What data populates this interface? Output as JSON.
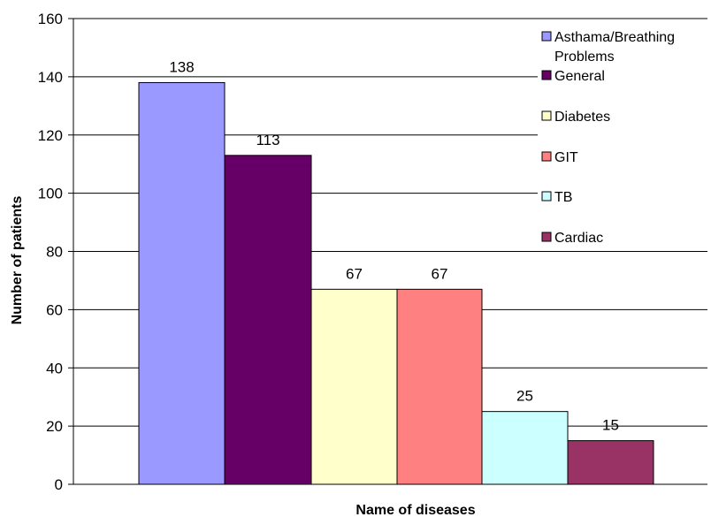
{
  "chart_data": {
    "type": "bar",
    "xlabel": "Name of diseases",
    "ylabel": "Number of patients",
    "ylim": [
      0,
      160
    ],
    "yticks": [
      0,
      20,
      40,
      60,
      80,
      100,
      120,
      140,
      160
    ],
    "grid": true,
    "legend_position": "right",
    "series": [
      {
        "name": "Asthama/Breathing Problems",
        "value": 138,
        "color": "#9999ff"
      },
      {
        "name": "General",
        "value": 113,
        "color": "#660066"
      },
      {
        "name": "Diabetes",
        "value": 67,
        "color": "#ffffcc"
      },
      {
        "name": "GIT",
        "value": 67,
        "color": "#ff8080"
      },
      {
        "name": "TB",
        "value": 25,
        "color": "#ccffff"
      },
      {
        "name": "Cardiac",
        "value": 15,
        "color": "#993366"
      }
    ]
  }
}
